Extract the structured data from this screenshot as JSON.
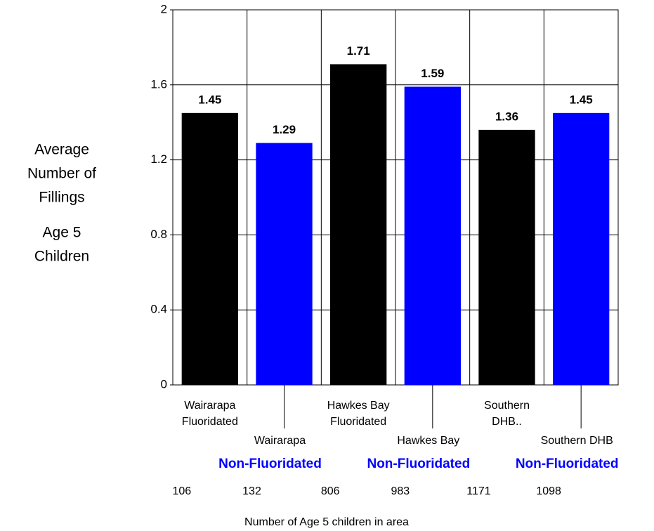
{
  "chart_data": {
    "type": "bar",
    "ylabel": [
      "Average",
      "Number of",
      "Fillings",
      "Age 5",
      "Children"
    ],
    "categories": [
      [
        "Wairarapa",
        "Fluoridated"
      ],
      [
        "Wairarapa",
        "Non-Fluoridated"
      ],
      [
        "Hawkes Bay",
        "Fluoridated"
      ],
      [
        "Hawkes Bay",
        "Non-Fluoridated"
      ],
      [
        "Southern",
        "DHB.."
      ],
      [
        "Southern DHB",
        "Non-Fluoridated"
      ]
    ],
    "values": [
      1.45,
      1.29,
      1.71,
      1.59,
      1.36,
      1.45
    ],
    "colors": [
      "#000000",
      "#0000ff",
      "#000000",
      "#0000ff",
      "#000000",
      "#0000ff"
    ],
    "counts": [
      106,
      132,
      806,
      983,
      1171,
      1098
    ],
    "xlabel": "Number of Age 5 children in area",
    "ylim": [
      0,
      2
    ],
    "yticks": [
      0,
      0.4,
      0.8,
      1.2,
      1.6,
      2
    ],
    "grid": true
  }
}
